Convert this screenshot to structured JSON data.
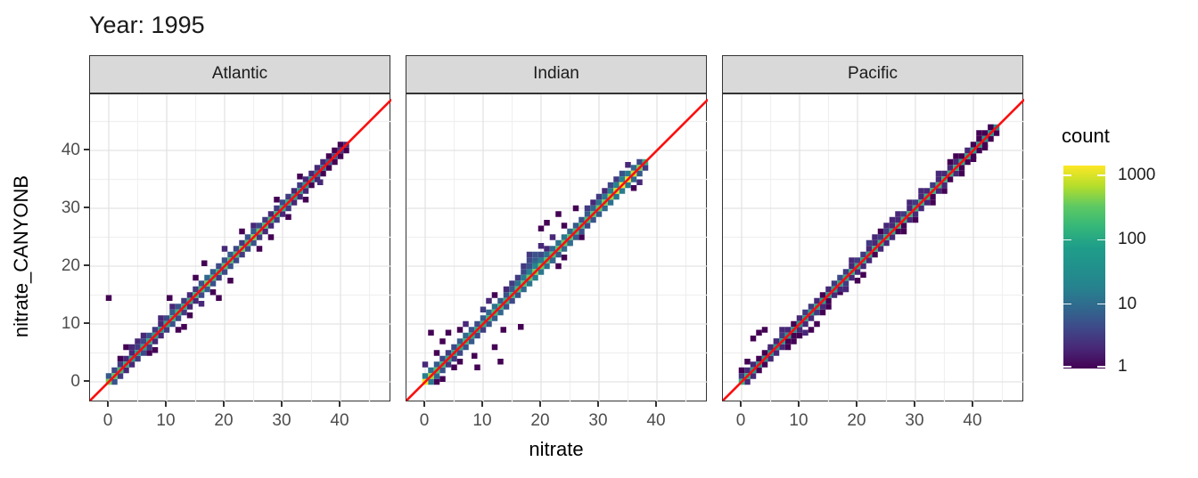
{
  "title": "Year: 1995",
  "axes": {
    "x": {
      "label": "nitrate",
      "ticks": [
        0,
        10,
        20,
        30,
        40
      ]
    },
    "y": {
      "label": "nitrate_CANYONB",
      "ticks": [
        0,
        10,
        20,
        30,
        40
      ]
    }
  },
  "legend": {
    "title": "count",
    "tick_labels": [
      "1000",
      "100",
      "10",
      "1"
    ],
    "tick_values": [
      1000,
      100,
      10,
      1
    ]
  },
  "colors": {
    "reference_line": "#fb0f0f",
    "strip_background": "#d9d9d9",
    "panel_border": "#333333",
    "grid_major": "#e3e3e3",
    "grid_minor": "#f0f0f0",
    "tick_label": "#4d4d4d",
    "viridis_stops": [
      "#440154",
      "#482878",
      "#3e4989",
      "#31688e",
      "#26828e",
      "#21918c",
      "#1f9e89",
      "#35b779",
      "#5ec962",
      "#b5de2b",
      "#fde725"
    ]
  },
  "chart_data": {
    "type": "heatmap",
    "subtype": "bin2d-scatter-comparison",
    "title": "Year: 1995",
    "xlabel": "nitrate",
    "ylabel": "nitrate_CANYONB",
    "xlim": [
      -3.2,
      48.8
    ],
    "ylim": [
      -3.5,
      49.7
    ],
    "grid": "on",
    "legend_position": "right",
    "color_scale": {
      "name": "viridis",
      "transform": "log10",
      "domain": [
        1,
        1000
      ],
      "label": "count"
    },
    "reference_line": {
      "type": "identity y=x",
      "color": "#fb0f0f"
    },
    "bin_width": 1,
    "facets": [
      {
        "label": "Atlantic",
        "diag_start": 0,
        "diag_counts": [
          300,
          220,
          150,
          90,
          70,
          60,
          80,
          90,
          70,
          60,
          90,
          110,
          130,
          90,
          100,
          120,
          140,
          260,
          160,
          120,
          200,
          170,
          150,
          260,
          180,
          300,
          220,
          160,
          140,
          120,
          100,
          90,
          80,
          70,
          60,
          40,
          12,
          10,
          8,
          5,
          3,
          2
        ],
        "upper_counts": [
          6,
          4,
          3,
          2,
          2,
          3,
          4,
          5,
          3,
          2,
          4,
          6,
          5,
          3,
          2,
          3,
          5,
          8,
          6,
          4,
          5,
          6,
          4,
          3,
          5,
          6,
          4,
          3,
          2,
          3,
          4,
          3,
          2,
          3,
          2,
          2,
          2,
          2,
          1,
          1,
          1
        ],
        "lower_counts": [
          5,
          3,
          2,
          2,
          3,
          4,
          3,
          2,
          2,
          3,
          5,
          4,
          3,
          2,
          2,
          4,
          6,
          5,
          3,
          4,
          5,
          4,
          3,
          4,
          5,
          3,
          2,
          2,
          3,
          2,
          3,
          2,
          2,
          2,
          1,
          2,
          1,
          1,
          1,
          1,
          1
        ],
        "extra_bins": [
          [
            0,
            14.5,
            1
          ],
          [
            10.5,
            14.5,
            1
          ],
          [
            4,
            6,
            2
          ],
          [
            5,
            7,
            2
          ],
          [
            3,
            6,
            1
          ],
          [
            6,
            8,
            2
          ],
          [
            7,
            5,
            1
          ],
          [
            8,
            5.5,
            1
          ],
          [
            12,
            9,
            1
          ],
          [
            13,
            9.5,
            1
          ],
          [
            16.5,
            20.5,
            1
          ],
          [
            19,
            14.5,
            1
          ],
          [
            18,
            15.5,
            1
          ],
          [
            21,
            17.5,
            1
          ],
          [
            25,
            27,
            2
          ],
          [
            26,
            23,
            1
          ],
          [
            28,
            25,
            1
          ],
          [
            31,
            28.5,
            1
          ],
          [
            16,
            13.5,
            2
          ],
          [
            11,
            13,
            2
          ],
          [
            2,
            4,
            1
          ],
          [
            34,
            31.5,
            1
          ],
          [
            36.5,
            34.5,
            2
          ],
          [
            23,
            26,
            1
          ],
          [
            20,
            23,
            2
          ],
          [
            15,
            18,
            1
          ],
          [
            29,
            31.5,
            1
          ],
          [
            33,
            35.5,
            1
          ],
          [
            9,
            11,
            2
          ],
          [
            14,
            11.5,
            1
          ]
        ]
      },
      {
        "label": "Indian",
        "diag_start": 0,
        "diag_counts": [
          900,
          400,
          200,
          120,
          90,
          80,
          100,
          120,
          90,
          80,
          100,
          120,
          150,
          130,
          110,
          130,
          160,
          200,
          260,
          300,
          260,
          200,
          180,
          200,
          260,
          200,
          160,
          140,
          160,
          200,
          260,
          300,
          400,
          600,
          900,
          800,
          600,
          300,
          120
        ],
        "upper_counts": [
          15,
          10,
          6,
          4,
          3,
          4,
          6,
          8,
          5,
          4,
          6,
          8,
          10,
          6,
          5,
          6,
          10,
          14,
          16,
          18,
          14,
          10,
          8,
          10,
          12,
          8,
          6,
          5,
          6,
          8,
          10,
          12,
          14,
          16,
          18,
          14,
          8,
          4
        ],
        "lower_counts": [
          12,
          8,
          5,
          3,
          3,
          4,
          5,
          6,
          4,
          3,
          5,
          6,
          8,
          5,
          4,
          5,
          8,
          12,
          14,
          12,
          10,
          8,
          6,
          8,
          10,
          6,
          5,
          4,
          5,
          6,
          8,
          10,
          12,
          14,
          12,
          8,
          6,
          3
        ],
        "extra_bins": [
          [
            1,
            8.5,
            1
          ],
          [
            4,
            8.5,
            1
          ],
          [
            13.5,
            9,
            1
          ],
          [
            12,
            6,
            1
          ],
          [
            13,
            3.5,
            1
          ],
          [
            8.5,
            4.5,
            1
          ],
          [
            9,
            2.5,
            1
          ],
          [
            16.5,
            9.5,
            1
          ],
          [
            20,
            26.5,
            1
          ],
          [
            21,
            27.5,
            1
          ],
          [
            15,
            17,
            3
          ],
          [
            14,
            16,
            2
          ],
          [
            22,
            25,
            2
          ],
          [
            23,
            29,
            1
          ],
          [
            26,
            30,
            1
          ],
          [
            11,
            14,
            2
          ],
          [
            7,
            10,
            2
          ],
          [
            5,
            2.5,
            1
          ],
          [
            6,
            3.5,
            1
          ],
          [
            10,
            12.5,
            3
          ],
          [
            18,
            21,
            4
          ],
          [
            19,
            22,
            5
          ],
          [
            18,
            22,
            3
          ],
          [
            19,
            21,
            6
          ],
          [
            20,
            22,
            4
          ],
          [
            18,
            20,
            5
          ],
          [
            20,
            21,
            3
          ],
          [
            17,
            20,
            3
          ],
          [
            21,
            23,
            2
          ],
          [
            22,
            21,
            1
          ],
          [
            24,
            21.5,
            1
          ],
          [
            23,
            20,
            1
          ],
          [
            25,
            24,
            2
          ],
          [
            27,
            25,
            1
          ],
          [
            29,
            31,
            2
          ],
          [
            31,
            33,
            2
          ],
          [
            33,
            35,
            3
          ],
          [
            35,
            37.5,
            2
          ],
          [
            2,
            5,
            1
          ],
          [
            3,
            7,
            1
          ],
          [
            0,
            3,
            2
          ],
          [
            36,
            33.5,
            1
          ],
          [
            37,
            34.5,
            2
          ],
          [
            28,
            30,
            3
          ],
          [
            30,
            32,
            3
          ],
          [
            32,
            34,
            4
          ],
          [
            34,
            36,
            5
          ],
          [
            17,
            19,
            4
          ],
          [
            19,
            20.5,
            8
          ],
          [
            18,
            19,
            6
          ],
          [
            20,
            23.5,
            2
          ],
          [
            16,
            18,
            3
          ],
          [
            12,
            15,
            1
          ],
          [
            24,
            27,
            1
          ],
          [
            6,
            9,
            1
          ],
          [
            3,
            0.5,
            1
          ],
          [
            2,
            0,
            1
          ]
        ]
      },
      {
        "label": "Pacific",
        "diag_start": 0,
        "diag_counts": [
          120,
          90,
          60,
          50,
          45,
          40,
          50,
          60,
          50,
          45,
          50,
          60,
          70,
          80,
          70,
          60,
          70,
          80,
          90,
          100,
          90,
          80,
          90,
          100,
          110,
          100,
          90,
          100,
          110,
          120,
          110,
          100,
          110,
          120,
          130,
          120,
          110,
          100,
          90,
          80,
          70,
          60,
          50,
          40,
          30
        ],
        "upper_counts": [
          3,
          2,
          2,
          1,
          1,
          2,
          2,
          3,
          2,
          1,
          2,
          3,
          3,
          2,
          1,
          2,
          3,
          4,
          3,
          2,
          3,
          3,
          2,
          2,
          3,
          3,
          2,
          2,
          3,
          2,
          3,
          2,
          2,
          3,
          2,
          2,
          2,
          2,
          1,
          2,
          1,
          1,
          1,
          1
        ],
        "lower_counts": [
          2,
          2,
          1,
          1,
          2,
          2,
          2,
          1,
          1,
          2,
          2,
          2,
          3,
          2,
          1,
          2,
          2,
          3,
          2,
          2,
          2,
          2,
          1,
          2,
          2,
          2,
          1,
          1,
          2,
          2,
          2,
          2,
          1,
          2,
          2,
          1,
          2,
          1,
          1,
          1,
          1,
          1,
          1,
          1
        ],
        "extra_bins": [
          [
            2,
            7.5,
            1
          ],
          [
            3,
            8.5,
            1
          ],
          [
            4,
            9,
            1
          ],
          [
            6,
            7,
            2
          ],
          [
            9,
            7,
            1
          ],
          [
            10,
            8,
            1
          ],
          [
            11,
            8.5,
            2
          ],
          [
            12,
            9,
            1
          ],
          [
            12.5,
            12,
            2
          ],
          [
            5,
            5.5,
            2
          ],
          [
            7,
            9,
            2
          ],
          [
            13,
            10,
            1
          ],
          [
            8,
            6,
            1
          ],
          [
            15,
            13,
            1
          ],
          [
            20,
            17.5,
            1
          ],
          [
            21,
            18.5,
            1
          ],
          [
            24,
            26,
            1
          ],
          [
            25,
            27,
            2
          ],
          [
            23,
            25,
            2
          ],
          [
            22,
            24,
            3
          ],
          [
            28,
            26,
            1
          ],
          [
            30,
            28,
            1
          ],
          [
            33,
            31,
            1
          ],
          [
            35,
            33,
            1
          ],
          [
            38,
            36,
            1
          ],
          [
            40,
            38.5,
            1
          ],
          [
            41,
            43,
            1
          ],
          [
            43,
            44,
            2
          ],
          [
            27,
            29,
            2
          ],
          [
            17,
            15.5,
            1
          ],
          [
            18,
            16,
            2
          ],
          [
            26,
            28,
            2
          ],
          [
            31,
            33,
            2
          ],
          [
            36,
            38,
            1
          ],
          [
            0,
            2,
            1
          ],
          [
            1,
            3.5,
            1
          ],
          [
            14,
            12,
            1
          ],
          [
            19,
            21,
            2
          ],
          [
            29,
            31,
            2
          ],
          [
            34,
            36,
            2
          ],
          [
            37,
            39,
            1
          ],
          [
            42,
            40.5,
            1
          ]
        ]
      }
    ]
  }
}
